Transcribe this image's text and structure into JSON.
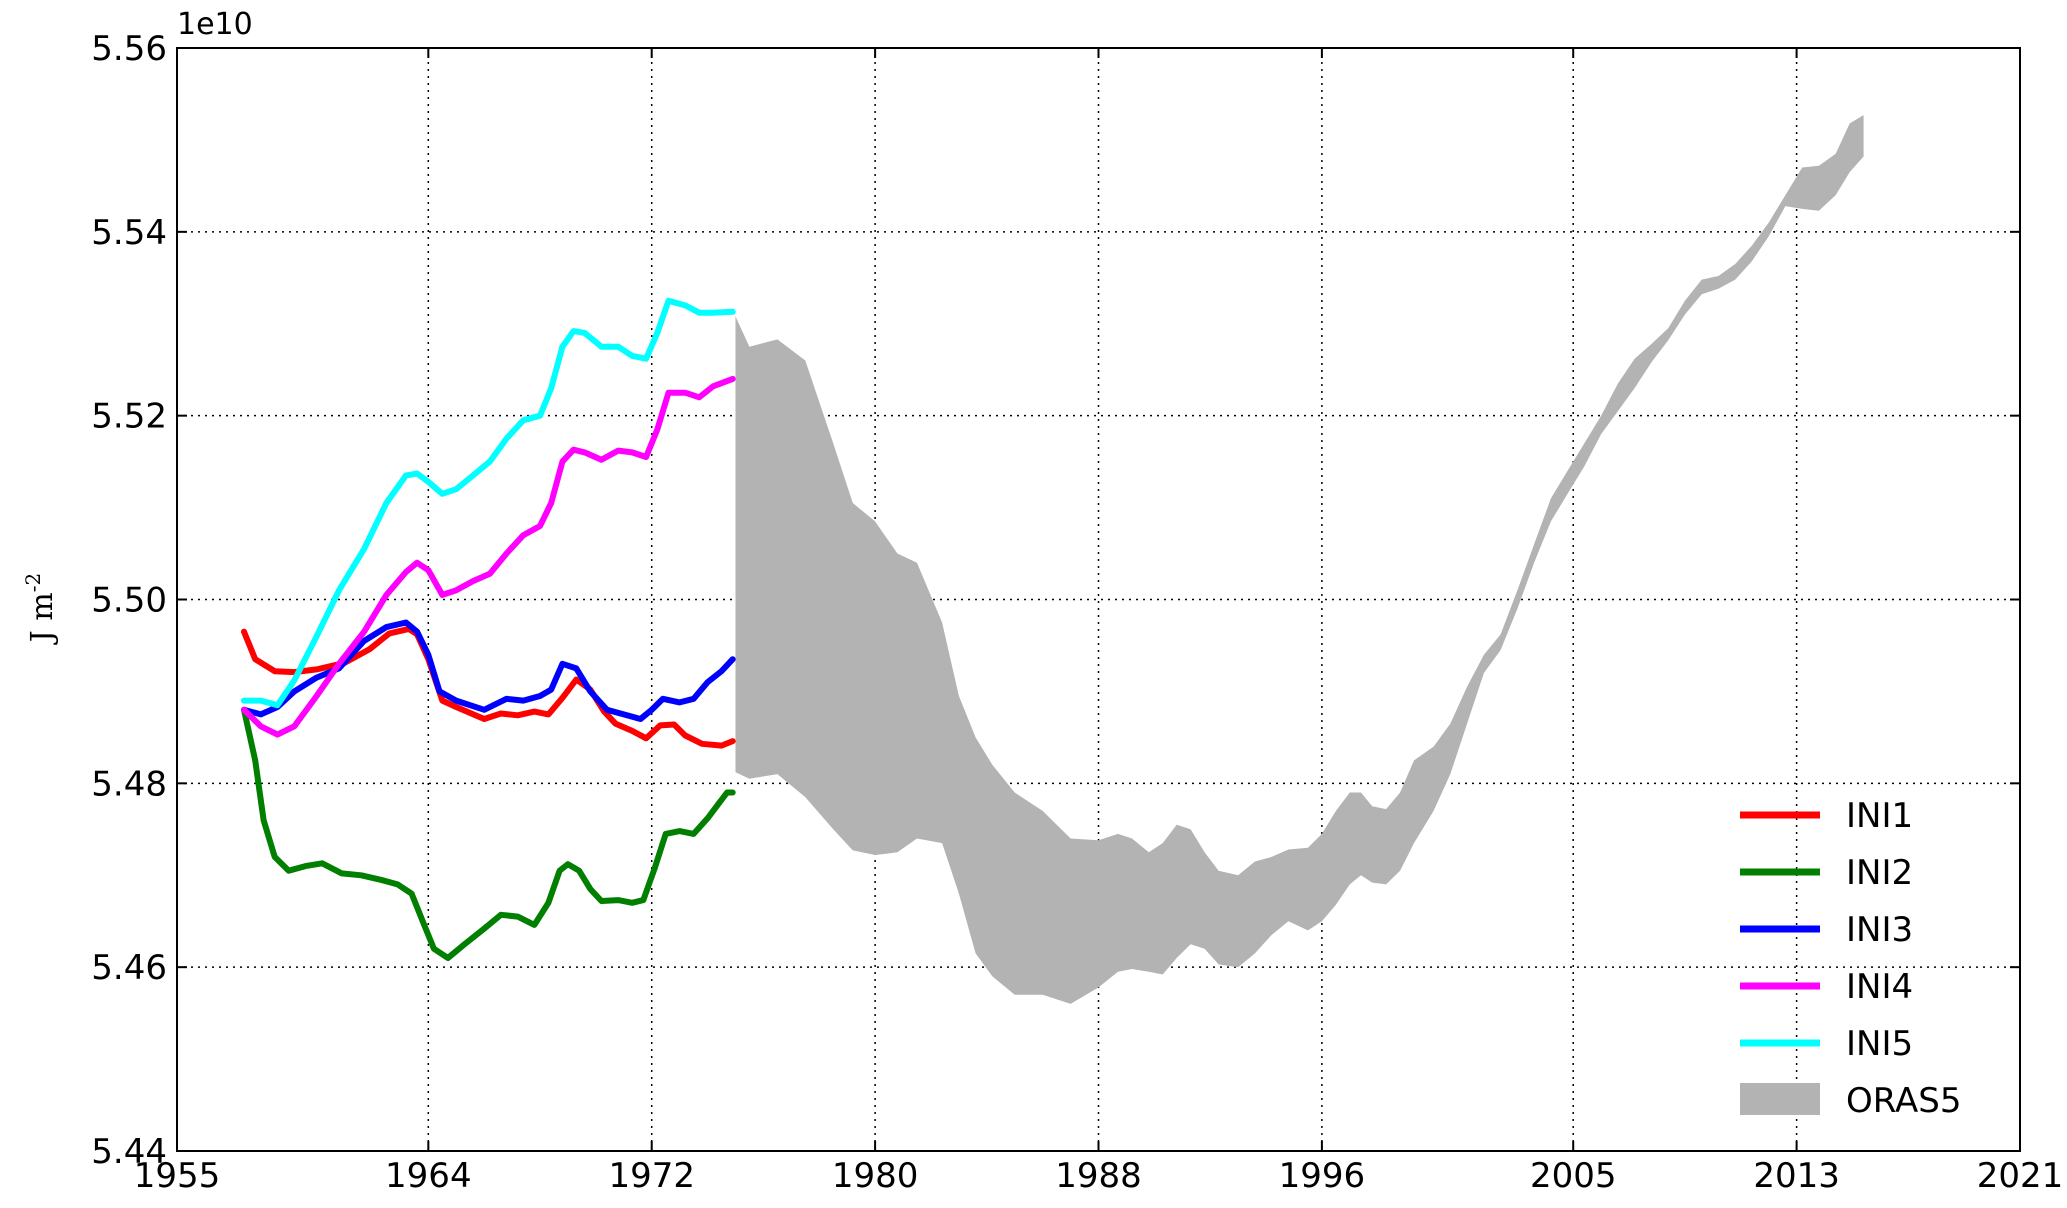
{
  "chart_data": {
    "type": "line",
    "offset_text": "1e10",
    "ylabel": "J m",
    "ylabel_sup": "-2",
    "xlim": [
      1955,
      2021
    ],
    "ylim": [
      5.44,
      5.56
    ],
    "xticks": [
      1955,
      1964,
      1972,
      1980,
      1988,
      1996,
      2005,
      2013,
      2021
    ],
    "xtick_labels": [
      "1955",
      "1964",
      "1972",
      "1980",
      "1988",
      "1996",
      "2005",
      "2013",
      "2021"
    ],
    "yticks": [
      5.44,
      5.46,
      5.48,
      5.5,
      5.52,
      5.54,
      5.56
    ],
    "ytick_labels": [
      "5.44",
      "5.46",
      "5.48",
      "5.50",
      "5.52",
      "5.54",
      "5.56"
    ],
    "grid": true,
    "legend_position": "bottom-right",
    "series": [
      {
        "name": "INI1",
        "color": "#ff0000",
        "points": [
          [
            1957.4,
            5.4965
          ],
          [
            1957.8,
            5.4935
          ],
          [
            1958.5,
            5.4922
          ],
          [
            1959.2,
            5.4921
          ],
          [
            1960.0,
            5.4924
          ],
          [
            1961.0,
            5.4931
          ],
          [
            1961.9,
            5.4946
          ],
          [
            1962.6,
            5.4963
          ],
          [
            1963.3,
            5.4968
          ],
          [
            1963.6,
            5.4962
          ],
          [
            1964.0,
            5.4935
          ],
          [
            1964.5,
            5.489
          ],
          [
            1965.0,
            5.4883
          ],
          [
            1966.0,
            5.487
          ],
          [
            1966.6,
            5.4876
          ],
          [
            1967.2,
            5.4874
          ],
          [
            1967.8,
            5.4878
          ],
          [
            1968.3,
            5.4875
          ],
          [
            1968.8,
            5.4893
          ],
          [
            1969.3,
            5.4913
          ],
          [
            1969.8,
            5.4902
          ],
          [
            1970.3,
            5.4878
          ],
          [
            1970.7,
            5.4865
          ],
          [
            1971.3,
            5.4857
          ],
          [
            1971.8,
            5.4849
          ],
          [
            1972.3,
            5.4863
          ],
          [
            1972.8,
            5.4864
          ],
          [
            1973.2,
            5.4852
          ],
          [
            1973.8,
            5.4843
          ],
          [
            1974.5,
            5.4841
          ],
          [
            1974.9,
            5.4846
          ]
        ]
      },
      {
        "name": "INI2",
        "color": "#007f00",
        "points": [
          [
            1957.4,
            5.488
          ],
          [
            1957.8,
            5.4825
          ],
          [
            1958.1,
            5.476
          ],
          [
            1958.5,
            5.472
          ],
          [
            1959.0,
            5.4705
          ],
          [
            1959.6,
            5.471
          ],
          [
            1960.2,
            5.4713
          ],
          [
            1960.9,
            5.4702
          ],
          [
            1961.6,
            5.47
          ],
          [
            1962.3,
            5.4695
          ],
          [
            1962.9,
            5.469
          ],
          [
            1963.4,
            5.468
          ],
          [
            1963.8,
            5.465
          ],
          [
            1964.2,
            5.462
          ],
          [
            1964.7,
            5.461
          ],
          [
            1965.3,
            5.4625
          ],
          [
            1966.0,
            5.4642
          ],
          [
            1966.6,
            5.4657
          ],
          [
            1967.2,
            5.4655
          ],
          [
            1967.8,
            5.4646
          ],
          [
            1968.3,
            5.467
          ],
          [
            1968.7,
            5.4705
          ],
          [
            1969.0,
            5.4712
          ],
          [
            1969.4,
            5.4705
          ],
          [
            1969.8,
            5.4685
          ],
          [
            1970.2,
            5.4672
          ],
          [
            1970.8,
            5.4673
          ],
          [
            1971.3,
            5.467
          ],
          [
            1971.7,
            5.4673
          ],
          [
            1972.1,
            5.4707
          ],
          [
            1972.5,
            5.4745
          ],
          [
            1973.0,
            5.4748
          ],
          [
            1973.5,
            5.4745
          ],
          [
            1974.0,
            5.4762
          ],
          [
            1974.4,
            5.4778
          ],
          [
            1974.7,
            5.479
          ],
          [
            1974.9,
            5.479
          ]
        ]
      },
      {
        "name": "INI3",
        "color": "#0000ff",
        "points": [
          [
            1957.4,
            5.488
          ],
          [
            1958.0,
            5.4875
          ],
          [
            1958.6,
            5.4883
          ],
          [
            1959.2,
            5.49
          ],
          [
            1960.0,
            5.4915
          ],
          [
            1960.8,
            5.4925
          ],
          [
            1961.7,
            5.4955
          ],
          [
            1962.5,
            5.497
          ],
          [
            1963.2,
            5.4975
          ],
          [
            1963.6,
            5.4965
          ],
          [
            1964.0,
            5.494
          ],
          [
            1964.4,
            5.49
          ],
          [
            1965.0,
            5.489
          ],
          [
            1966.0,
            5.488
          ],
          [
            1966.8,
            5.4892
          ],
          [
            1967.4,
            5.489
          ],
          [
            1968.0,
            5.4895
          ],
          [
            1968.4,
            5.4902
          ],
          [
            1968.8,
            5.493
          ],
          [
            1969.3,
            5.4925
          ],
          [
            1969.8,
            5.49
          ],
          [
            1970.4,
            5.488
          ],
          [
            1971.0,
            5.4875
          ],
          [
            1971.6,
            5.487
          ],
          [
            1972.0,
            5.488
          ],
          [
            1972.4,
            5.4892
          ],
          [
            1973.0,
            5.4888
          ],
          [
            1973.5,
            5.4892
          ],
          [
            1974.0,
            5.491
          ],
          [
            1974.5,
            5.4922
          ],
          [
            1974.9,
            5.4935
          ]
        ]
      },
      {
        "name": "INI4",
        "color": "#ff00ff",
        "points": [
          [
            1957.4,
            5.488
          ],
          [
            1958.0,
            5.4862
          ],
          [
            1958.6,
            5.4853
          ],
          [
            1959.2,
            5.4862
          ],
          [
            1960.0,
            5.4895
          ],
          [
            1960.8,
            5.493
          ],
          [
            1961.7,
            5.4965
          ],
          [
            1962.5,
            5.5005
          ],
          [
            1963.2,
            5.503
          ],
          [
            1963.6,
            5.504
          ],
          [
            1964.0,
            5.5032
          ],
          [
            1964.5,
            5.5005
          ],
          [
            1965.0,
            5.501
          ],
          [
            1965.6,
            5.502
          ],
          [
            1966.2,
            5.5028
          ],
          [
            1966.8,
            5.505
          ],
          [
            1967.4,
            5.507
          ],
          [
            1968.0,
            5.508
          ],
          [
            1968.4,
            5.5105
          ],
          [
            1968.8,
            5.515
          ],
          [
            1969.2,
            5.5163
          ],
          [
            1969.6,
            5.516
          ],
          [
            1970.2,
            5.5152
          ],
          [
            1970.8,
            5.5162
          ],
          [
            1971.3,
            5.516
          ],
          [
            1971.8,
            5.5155
          ],
          [
            1972.2,
            5.5185
          ],
          [
            1972.6,
            5.5225
          ],
          [
            1973.2,
            5.5225
          ],
          [
            1973.7,
            5.522
          ],
          [
            1974.2,
            5.5232
          ],
          [
            1974.9,
            5.524
          ]
        ]
      },
      {
        "name": "INI5",
        "color": "#00ffff",
        "points": [
          [
            1957.4,
            5.489
          ],
          [
            1958.0,
            5.489
          ],
          [
            1958.6,
            5.4885
          ],
          [
            1959.2,
            5.4912
          ],
          [
            1960.0,
            5.496
          ],
          [
            1960.8,
            5.501
          ],
          [
            1961.7,
            5.5055
          ],
          [
            1962.5,
            5.5105
          ],
          [
            1963.2,
            5.5135
          ],
          [
            1963.6,
            5.5137
          ],
          [
            1964.0,
            5.5128
          ],
          [
            1964.5,
            5.5115
          ],
          [
            1965.0,
            5.512
          ],
          [
            1965.6,
            5.5135
          ],
          [
            1966.2,
            5.515
          ],
          [
            1966.8,
            5.5175
          ],
          [
            1967.4,
            5.5195
          ],
          [
            1968.0,
            5.52
          ],
          [
            1968.4,
            5.523
          ],
          [
            1968.8,
            5.5275
          ],
          [
            1969.2,
            5.5292
          ],
          [
            1969.6,
            5.529
          ],
          [
            1970.2,
            5.5275
          ],
          [
            1970.8,
            5.5275
          ],
          [
            1971.3,
            5.5265
          ],
          [
            1971.8,
            5.5262
          ],
          [
            1972.2,
            5.529
          ],
          [
            1972.6,
            5.5325
          ],
          [
            1973.2,
            5.532
          ],
          [
            1973.7,
            5.5312
          ],
          [
            1974.2,
            5.5312
          ],
          [
            1974.9,
            5.5313
          ]
        ]
      }
    ],
    "band": {
      "name": "ORAS5",
      "color": "#b3b3b3",
      "upper": [
        [
          1975,
          5.5308
        ],
        [
          1975.5,
          5.5275
        ],
        [
          1976.5,
          5.5283
        ],
        [
          1977.5,
          5.526
        ],
        [
          1978.5,
          5.517
        ],
        [
          1979.2,
          5.5105
        ],
        [
          1980.0,
          5.5085
        ],
        [
          1980.8,
          5.505
        ],
        [
          1981.5,
          5.504
        ],
        [
          1982.4,
          5.4975
        ],
        [
          1983.0,
          5.4895
        ],
        [
          1983.6,
          5.485
        ],
        [
          1984.2,
          5.482
        ],
        [
          1985.0,
          5.479
        ],
        [
          1986.0,
          5.477
        ],
        [
          1987.0,
          5.474
        ],
        [
          1988.0,
          5.4738
        ],
        [
          1988.7,
          5.4745
        ],
        [
          1989.2,
          5.474
        ],
        [
          1989.8,
          5.4725
        ],
        [
          1990.3,
          5.4735
        ],
        [
          1990.8,
          5.4755
        ],
        [
          1991.3,
          5.475
        ],
        [
          1991.8,
          5.4725
        ],
        [
          1992.3,
          5.4705
        ],
        [
          1993.0,
          5.47
        ],
        [
          1993.6,
          5.4715
        ],
        [
          1994.2,
          5.472
        ],
        [
          1994.8,
          5.4728
        ],
        [
          1995.5,
          5.473
        ],
        [
          1996.0,
          5.4745
        ],
        [
          1996.5,
          5.477
        ],
        [
          1997.0,
          5.479
        ],
        [
          1997.4,
          5.479
        ],
        [
          1997.8,
          5.4775
        ],
        [
          1998.3,
          5.4772
        ],
        [
          1998.8,
          5.479
        ],
        [
          1999.3,
          5.4825
        ],
        [
          2000.0,
          5.484
        ],
        [
          2000.6,
          5.4865
        ],
        [
          2001.2,
          5.4905
        ],
        [
          2001.8,
          5.494
        ],
        [
          2002.4,
          5.4962
        ],
        [
          2003.0,
          5.501
        ],
        [
          2003.6,
          5.506
        ],
        [
          2004.2,
          5.511
        ],
        [
          2004.8,
          5.514
        ],
        [
          2005.4,
          5.517
        ],
        [
          2006.0,
          5.52
        ],
        [
          2006.6,
          5.5235
        ],
        [
          2007.2,
          5.5262
        ],
        [
          2007.8,
          5.5278
        ],
        [
          2008.4,
          5.5295
        ],
        [
          2009.0,
          5.5325
        ],
        [
          2009.6,
          5.5348
        ],
        [
          2010.2,
          5.5352
        ],
        [
          2010.8,
          5.5365
        ],
        [
          2011.4,
          5.5385
        ],
        [
          2012.0,
          5.541
        ],
        [
          2012.6,
          5.544
        ],
        [
          2013.2,
          5.547
        ],
        [
          2013.8,
          5.5472
        ],
        [
          2014.4,
          5.5485
        ],
        [
          2014.9,
          5.5518
        ],
        [
          2015.4,
          5.5527
        ]
      ],
      "lower": [
        [
          1975,
          5.4812
        ],
        [
          1975.5,
          5.4805
        ],
        [
          1976.5,
          5.481
        ],
        [
          1977.5,
          5.4785
        ],
        [
          1978.5,
          5.475
        ],
        [
          1979.2,
          5.4727
        ],
        [
          1980.0,
          5.4722
        ],
        [
          1980.8,
          5.4725
        ],
        [
          1981.5,
          5.474
        ],
        [
          1982.4,
          5.4735
        ],
        [
          1983.0,
          5.468
        ],
        [
          1983.6,
          5.4615
        ],
        [
          1984.2,
          5.459
        ],
        [
          1985.0,
          5.457
        ],
        [
          1986.0,
          5.457
        ],
        [
          1987.0,
          5.456
        ],
        [
          1988.0,
          5.4578
        ],
        [
          1988.7,
          5.4595
        ],
        [
          1989.2,
          5.4598
        ],
        [
          1989.8,
          5.4595
        ],
        [
          1990.3,
          5.4592
        ],
        [
          1990.8,
          5.461
        ],
        [
          1991.3,
          5.4625
        ],
        [
          1991.8,
          5.462
        ],
        [
          1992.3,
          5.4603
        ],
        [
          1993.0,
          5.46
        ],
        [
          1993.6,
          5.4615
        ],
        [
          1994.2,
          5.4635
        ],
        [
          1994.8,
          5.465
        ],
        [
          1995.5,
          5.464
        ],
        [
          1996.0,
          5.465
        ],
        [
          1996.5,
          5.4668
        ],
        [
          1997.0,
          5.469
        ],
        [
          1997.4,
          5.47
        ],
        [
          1997.8,
          5.4692
        ],
        [
          1998.3,
          5.469
        ],
        [
          1998.8,
          5.4705
        ],
        [
          1999.3,
          5.4735
        ],
        [
          2000.0,
          5.477
        ],
        [
          2000.6,
          5.481
        ],
        [
          2001.2,
          5.4865
        ],
        [
          2001.8,
          5.492
        ],
        [
          2002.4,
          5.4945
        ],
        [
          2003.0,
          5.499
        ],
        [
          2003.6,
          5.504
        ],
        [
          2004.2,
          5.5085
        ],
        [
          2004.8,
          5.5115
        ],
        [
          2005.4,
          5.5145
        ],
        [
          2006.0,
          5.518
        ],
        [
          2006.6,
          5.5205
        ],
        [
          2007.2,
          5.523
        ],
        [
          2007.8,
          5.5258
        ],
        [
          2008.4,
          5.5282
        ],
        [
          2009.0,
          5.531
        ],
        [
          2009.6,
          5.5332
        ],
        [
          2010.2,
          5.5338
        ],
        [
          2010.8,
          5.5348
        ],
        [
          2011.4,
          5.5368
        ],
        [
          2012.0,
          5.5395
        ],
        [
          2012.6,
          5.5428
        ],
        [
          2013.2,
          5.5425
        ],
        [
          2013.8,
          5.5423
        ],
        [
          2014.4,
          5.544
        ],
        [
          2014.9,
          5.5465
        ],
        [
          2015.4,
          5.5482
        ]
      ]
    }
  }
}
